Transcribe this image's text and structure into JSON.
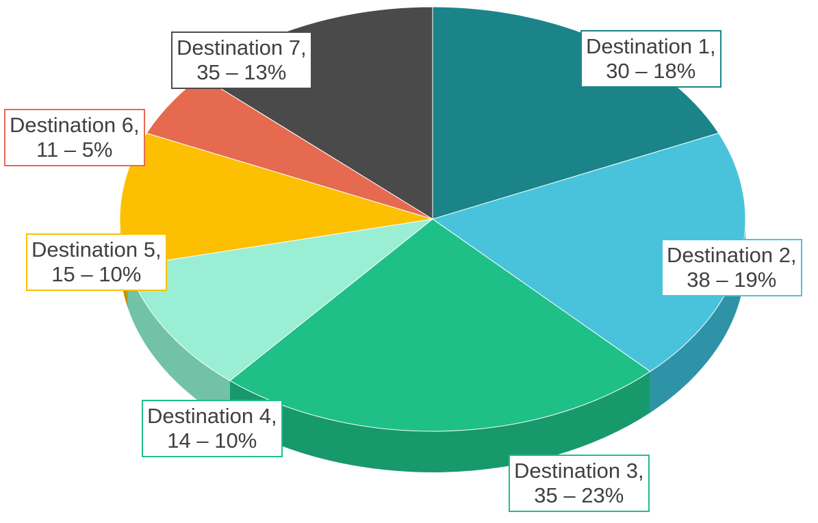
{
  "chart_data": {
    "type": "pie",
    "style": "3d",
    "title": "",
    "slices": [
      {
        "name": "Destination 1",
        "value": 30,
        "percent": 18,
        "line1": "Destination 1,",
        "line2": "30 – 18%",
        "color": "#1B8489",
        "side_color": "#146a6e"
      },
      {
        "name": "Destination 2",
        "value": 38,
        "percent": 19,
        "line1": "Destination 2,",
        "line2": "38 – 19%",
        "color": "#48C3DB",
        "side_color": "#2f93a8"
      },
      {
        "name": "Destination 3",
        "value": 35,
        "percent": 23,
        "line1": "Destination 3,",
        "line2": "35 – 23%",
        "color": "#1FBF88",
        "side_color": "#17996c"
      },
      {
        "name": "Destination 4",
        "value": 14,
        "percent": 10,
        "line1": "Destination 4,",
        "line2": "14 – 10%",
        "color": "#9AEED3",
        "side_color": "#72c2a8"
      },
      {
        "name": "Destination 5",
        "value": 15,
        "percent": 10,
        "line1": "Destination 5,",
        "line2": "15 – 10%",
        "color": "#FCBF02",
        "side_color": "#c29200"
      },
      {
        "name": "Destination 6",
        "value": 11,
        "percent": 5,
        "line1": "Destination 6,",
        "line2": "11 – 5%",
        "color": "#E56A50",
        "side_color": "#b5503b"
      },
      {
        "name": "Destination 7",
        "value": 35,
        "percent": 13,
        "line1": "Destination 7,",
        "line2": "35 – 13%",
        "color": "#4A4A4A",
        "side_color": "#333333"
      }
    ],
    "label_border_colors": [
      "#1B8489",
      "#48C3DB",
      "#1FBF88",
      "#1FBF88",
      "#FCBF02",
      "#E56A50",
      "#4A4A4A"
    ],
    "start_angle": "12 o'clock",
    "direction": "clockwise",
    "legend": "none"
  }
}
